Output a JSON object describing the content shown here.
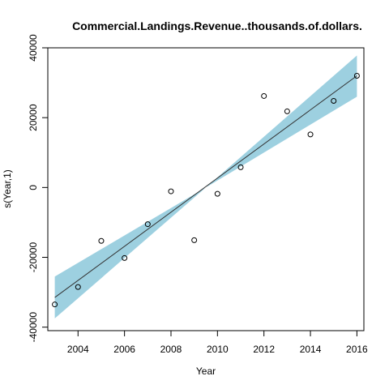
{
  "chart_data": {
    "type": "scatter",
    "title": "Commercial.Landings.Revenue..thousands.of.dollars.",
    "xlabel": "Year",
    "ylabel": "s(Year,1)",
    "xlim": [
      2002.7,
      2016.3
    ],
    "ylim": [
      -41000,
      40000
    ],
    "x_ticks": [
      2004,
      2006,
      2008,
      2010,
      2012,
      2014,
      2016
    ],
    "y_ticks": [
      -40000,
      -20000,
      0,
      20000,
      40000
    ],
    "x_tick_labels": [
      "2004",
      "2006",
      "2008",
      "2010",
      "2012",
      "2014",
      "2016"
    ],
    "y_tick_labels": [
      "-40000",
      "-20000",
      "0",
      "20000",
      "40000"
    ],
    "points": [
      {
        "x": 2003,
        "y": -33500
      },
      {
        "x": 2004,
        "y": -28500
      },
      {
        "x": 2005,
        "y": -15300
      },
      {
        "x": 2006,
        "y": -20200
      },
      {
        "x": 2007,
        "y": -10500
      },
      {
        "x": 2008,
        "y": -1100
      },
      {
        "x": 2009,
        "y": -15100
      },
      {
        "x": 2010,
        "y": -1800
      },
      {
        "x": 2011,
        "y": 5800
      },
      {
        "x": 2012,
        "y": 26200
      },
      {
        "x": 2013,
        "y": 21800
      },
      {
        "x": 2014,
        "y": 15200
      },
      {
        "x": 2015,
        "y": 24800
      },
      {
        "x": 2016,
        "y": 32000
      }
    ],
    "fit_line": {
      "x": [
        2003,
        2016
      ],
      "y": [
        -31500,
        32000
      ]
    },
    "confidence_band": {
      "x": [
        2003,
        2009.5,
        2016
      ],
      "upper": [
        -25500,
        0,
        37800
      ],
      "lower": [
        -37500,
        0,
        26000
      ]
    },
    "band_color": "#9dd0e0",
    "line_color": "#333333",
    "point_color": "#000000",
    "grid": false,
    "legend": "none"
  }
}
